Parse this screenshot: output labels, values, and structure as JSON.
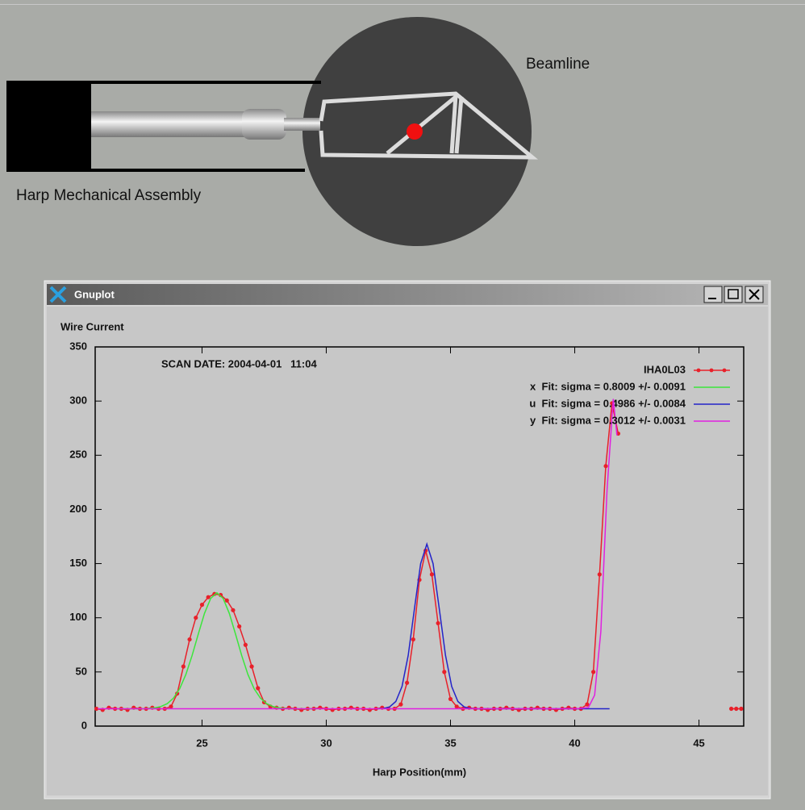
{
  "diagram": {
    "beamline_label": "Beamline",
    "assembly_label": "Harp Mechanical Assembly"
  },
  "window": {
    "title": "Gnuplot"
  },
  "chart_data": {
    "type": "line",
    "annotation": "SCAN DATE: 2004-04-01   11:04",
    "x_label": "Harp Position(mm)",
    "y_label": "Wire Current",
    "xlim": [
      20.7,
      46.8
    ],
    "xticks": [
      25,
      30,
      35,
      40,
      45
    ],
    "ylim": [
      0,
      350
    ],
    "yticks": [
      0,
      50,
      100,
      150,
      200,
      250,
      300,
      350
    ],
    "grid": false,
    "legend": "top-right",
    "series": [
      {
        "name": "IHA0L03",
        "color": "#e8202a",
        "marker": true,
        "x": [
          20.75,
          21,
          21.25,
          21.5,
          21.75,
          22,
          22.25,
          22.5,
          22.75,
          23,
          23.25,
          23.5,
          23.75,
          24,
          24.25,
          24.5,
          24.75,
          25,
          25.25,
          25.5,
          25.75,
          26,
          26.25,
          26.5,
          26.75,
          27,
          27.25,
          27.5,
          27.75,
          28,
          28.25,
          28.5,
          28.75,
          29,
          29.25,
          29.5,
          29.75,
          30,
          30.25,
          30.5,
          30.75,
          31,
          31.25,
          31.5,
          31.75,
          32,
          32.25,
          32.5,
          32.75,
          33,
          33.25,
          33.5,
          33.75,
          34,
          34.25,
          34.5,
          34.75,
          35,
          35.25,
          35.5,
          35.75,
          36,
          36.25,
          36.5,
          36.75,
          37,
          37.25,
          37.5,
          37.75,
          38,
          38.25,
          38.5,
          38.75,
          39,
          39.25,
          39.5,
          39.75,
          40,
          40.25,
          40.5,
          40.75,
          41,
          41.25,
          41.5,
          41.75,
          44,
          46.3,
          46.5,
          46.7
        ],
        "values": [
          16,
          15,
          17,
          16,
          16,
          15,
          17,
          16,
          16,
          17,
          16,
          16,
          18,
          30,
          55,
          80,
          100,
          112,
          119,
          122,
          121,
          116,
          107,
          92,
          75,
          55,
          35,
          22,
          18,
          17,
          16,
          17,
          16,
          15,
          16,
          16,
          17,
          16,
          15,
          16,
          16,
          17,
          16,
          16,
          15,
          16,
          17,
          16,
          16,
          20,
          40,
          80,
          135,
          162,
          140,
          95,
          50,
          25,
          18,
          16,
          17,
          16,
          16,
          15,
          16,
          16,
          17,
          16,
          15,
          16,
          16,
          17,
          16,
          16,
          15,
          16,
          17,
          16,
          16,
          20,
          50,
          140,
          240,
          298,
          270,
          null,
          16,
          16,
          16
        ]
      },
      {
        "name": "x  Fit: sigma = 0.8009 +/- 0.0091",
        "color": "#3ce63c",
        "marker": false,
        "x": [
          21.6,
          22.6,
          22.85,
          23.1,
          23.35,
          23.6,
          23.85,
          24.1,
          24.35,
          24.6,
          24.85,
          25.1,
          25.35,
          25.6,
          25.85,
          26.1,
          26.35,
          26.6,
          26.85,
          27.1,
          27.35,
          27.6,
          27.85,
          28.1,
          28.35,
          28.6,
          29.6
        ],
        "values": [
          16,
          16,
          16.3,
          16.8,
          18.1,
          20.7,
          25.8,
          34.4,
          47.6,
          65,
          84.9,
          104,
          117.9,
          123,
          117.9,
          104,
          84.9,
          65,
          47.6,
          34.4,
          25.8,
          20.7,
          18.1,
          16.8,
          16.3,
          16,
          16
        ]
      },
      {
        "name": "u  Fit: sigma = 0.4986 +/- 0.0084",
        "color": "#2424c8",
        "marker": false,
        "x": [
          32.05,
          32.3,
          32.55,
          32.8,
          33.05,
          33.3,
          33.55,
          33.8,
          34.05,
          34.3,
          34.55,
          34.8,
          35.05,
          35.3,
          35.55,
          35.8,
          36.05,
          41.4
        ],
        "values": [
          16,
          16.3,
          17.7,
          22.7,
          36.6,
          65.4,
          108.3,
          150,
          168,
          150,
          108.3,
          65.4,
          36.6,
          22.7,
          17.7,
          16.3,
          16,
          16
        ]
      },
      {
        "name": "y  Fit: sigma = 0.3012 +/- 0.0031",
        "color": "#e020e0",
        "marker": false,
        "x": [
          20.8,
          40.05,
          40.55,
          40.8,
          41.05,
          41.3,
          41.55,
          41.7
        ],
        "values": [
          16,
          16,
          17.1,
          28.6,
          87.3,
          218.2,
          302,
          268.3
        ]
      }
    ]
  }
}
